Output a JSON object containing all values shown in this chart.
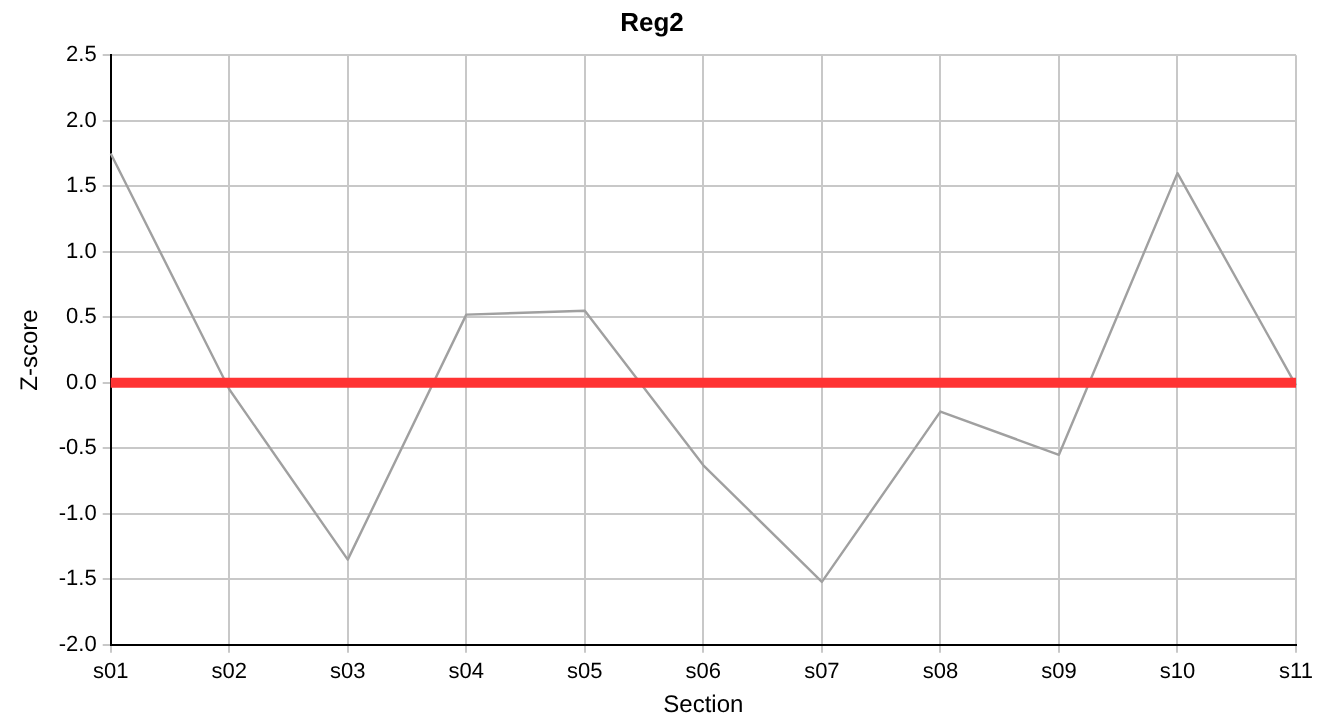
{
  "chart_data": {
    "type": "line",
    "title": "Reg2",
    "xlabel": "Section",
    "ylabel": "Z-score",
    "categories": [
      "s01",
      "s02",
      "s03",
      "s04",
      "s05",
      "s06",
      "s07",
      "s08",
      "s09",
      "s10",
      "s11"
    ],
    "series": [
      {
        "color": "#a0a0a0",
        "values": [
          1.75,
          -0.05,
          -1.35,
          0.52,
          0.55,
          -0.63,
          -1.52,
          -0.22,
          -0.55,
          1.6,
          -0.02
        ]
      }
    ],
    "ylim": [
      -2.0,
      2.5
    ],
    "yticks": [
      {
        "value": -2,
        "label": "-2.0"
      },
      {
        "value": -1.5,
        "label": "-1.5"
      },
      {
        "value": -1,
        "label": "-1.0"
      },
      {
        "value": -0.5,
        "label": "-0.5"
      },
      {
        "value": 0,
        "label": "0.0"
      },
      {
        "value": 0.5,
        "label": "0.5"
      },
      {
        "value": 1,
        "label": "1.0"
      },
      {
        "value": 1.5,
        "label": "1.5"
      },
      {
        "value": 2,
        "label": "2.0"
      },
      {
        "value": 2.5,
        "label": "2.5"
      }
    ],
    "ref_lines": [
      {
        "axis": "y",
        "value": 0,
        "color": "#ff3333"
      }
    ],
    "grid": true,
    "legend": false,
    "marker": "none",
    "line_style": "solid"
  }
}
